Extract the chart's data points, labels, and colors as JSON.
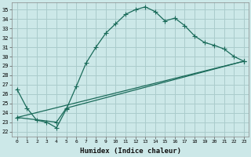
{
  "xlabel": "Humidex (Indice chaleur)",
  "bg_color": "#cce8e8",
  "grid_color": "#aacccc",
  "line_color": "#1a6b5a",
  "xlim": [
    -0.5,
    23.5
  ],
  "ylim": [
    21.5,
    35.8
  ],
  "xticks": [
    0,
    1,
    2,
    3,
    4,
    5,
    6,
    7,
    8,
    9,
    10,
    11,
    12,
    13,
    14,
    15,
    16,
    17,
    18,
    19,
    20,
    21,
    22,
    23
  ],
  "yticks": [
    22,
    23,
    24,
    25,
    26,
    27,
    28,
    29,
    30,
    31,
    32,
    33,
    34,
    35
  ],
  "curve1_x": [
    0,
    1,
    2,
    3,
    4,
    5,
    6,
    7,
    8,
    9,
    10,
    11,
    12,
    13,
    14,
    15,
    16,
    17,
    18,
    19,
    20,
    21,
    22,
    23
  ],
  "curve1_y": [
    26.5,
    24.5,
    23.2,
    23.0,
    22.4,
    24.4,
    26.8,
    29.3,
    31.0,
    32.5,
    33.5,
    34.5,
    35.0,
    35.3,
    34.8,
    33.8,
    34.1,
    33.3,
    32.2,
    31.5,
    31.2,
    30.8,
    30.0,
    29.5
  ],
  "curve2_x": [
    0,
    23
  ],
  "curve2_y": [
    23.5,
    29.5
  ],
  "curve3_x": [
    0,
    4,
    5,
    23
  ],
  "curve3_y": [
    23.5,
    23.0,
    24.5,
    29.5
  ]
}
